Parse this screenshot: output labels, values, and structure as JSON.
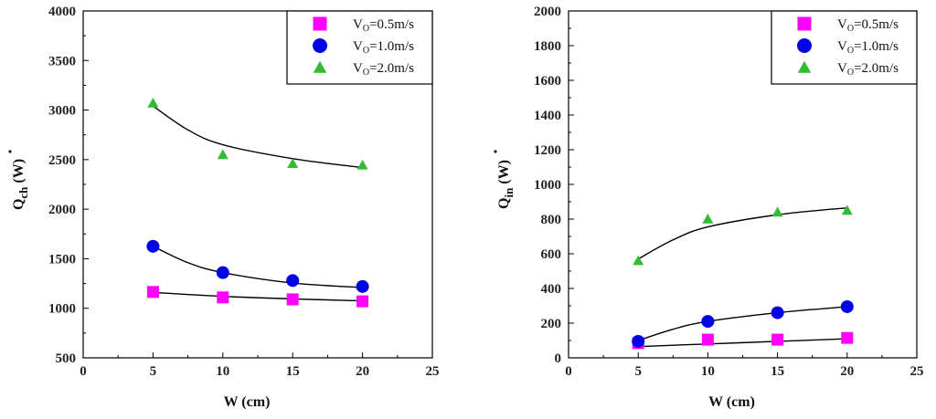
{
  "chart_data": [
    {
      "type": "scatter",
      "title": "",
      "xlabel": "W (cm)",
      "ylabel_main": "Q",
      "ylabel_sub": "ch",
      "ylabel_unit": " (W)",
      "xlim": [
        0,
        25
      ],
      "ylim": [
        500,
        4000
      ],
      "x_ticks": [
        0,
        5,
        10,
        15,
        20,
        25
      ],
      "y_ticks": [
        500,
        1000,
        1500,
        2000,
        2500,
        3000,
        3500,
        4000
      ],
      "legend_position": "top-right",
      "series": [
        {
          "name_main": "V",
          "name_sub": "O",
          "name_rest": "=0.5m/s",
          "marker": "square",
          "color": "#ff00ff",
          "x": [
            5,
            10,
            15,
            20
          ],
          "y": [
            1165,
            1110,
            1090,
            1070
          ],
          "fit": [
            [
              5,
              1160
            ],
            [
              10,
              1120
            ],
            [
              15,
              1095
            ],
            [
              20,
              1075
            ]
          ]
        },
        {
          "name_main": "V",
          "name_sub": "O",
          "name_rest": "=1.0m/s",
          "marker": "circle",
          "color": "#0000e6",
          "x": [
            5,
            10,
            15,
            20
          ],
          "y": [
            1625,
            1360,
            1280,
            1220
          ],
          "fit": [
            [
              5,
              1625
            ],
            [
              7.5,
              1460
            ],
            [
              10,
              1360
            ],
            [
              15,
              1255
            ],
            [
              20,
              1210
            ]
          ]
        },
        {
          "name_main": "V",
          "name_sub": "O",
          "name_rest": "=2.0m/s",
          "marker": "triangle",
          "color": "#33bb33",
          "x": [
            5,
            10,
            15,
            20
          ],
          "y": [
            3070,
            2550,
            2460,
            2445
          ],
          "fit": [
            [
              5,
              3040
            ],
            [
              7.5,
              2800
            ],
            [
              10,
              2650
            ],
            [
              15,
              2510
            ],
            [
              20,
              2420
            ]
          ]
        }
      ]
    },
    {
      "type": "scatter",
      "title": "",
      "xlabel": "W (cm)",
      "ylabel_main": "Q",
      "ylabel_sub": "in",
      "ylabel_unit": " (W)",
      "xlim": [
        0,
        25
      ],
      "ylim": [
        0,
        2000
      ],
      "x_ticks": [
        0,
        5,
        10,
        15,
        20,
        25
      ],
      "y_ticks": [
        0,
        200,
        400,
        600,
        800,
        1000,
        1200,
        1400,
        1600,
        1800,
        2000
      ],
      "legend_position": "top-right",
      "series": [
        {
          "name_main": "V",
          "name_sub": "O",
          "name_rest": "=0.5m/s",
          "marker": "square",
          "color": "#ff00ff",
          "x": [
            5,
            10,
            15,
            20
          ],
          "y": [
            85,
            105,
            105,
            115
          ],
          "fit": [
            [
              5,
              65
            ],
            [
              10,
              80
            ],
            [
              15,
              95
            ],
            [
              20,
              110
            ]
          ]
        },
        {
          "name_main": "V",
          "name_sub": "O",
          "name_rest": "=1.0m/s",
          "marker": "circle",
          "color": "#0000e6",
          "x": [
            5,
            10,
            15,
            20
          ],
          "y": [
            95,
            210,
            260,
            295
          ],
          "fit": [
            [
              5,
              100
            ],
            [
              7.5,
              165
            ],
            [
              10,
              210
            ],
            [
              15,
              260
            ],
            [
              20,
              295
            ]
          ]
        },
        {
          "name_main": "V",
          "name_sub": "O",
          "name_rest": "=2.0m/s",
          "marker": "triangle",
          "color": "#33bb33",
          "x": [
            5,
            10,
            15,
            20
          ],
          "y": [
            560,
            800,
            840,
            850
          ],
          "fit": [
            [
              5,
              570
            ],
            [
              7.5,
              680
            ],
            [
              10,
              755
            ],
            [
              15,
              825
            ],
            [
              20,
              865
            ]
          ]
        }
      ]
    }
  ]
}
